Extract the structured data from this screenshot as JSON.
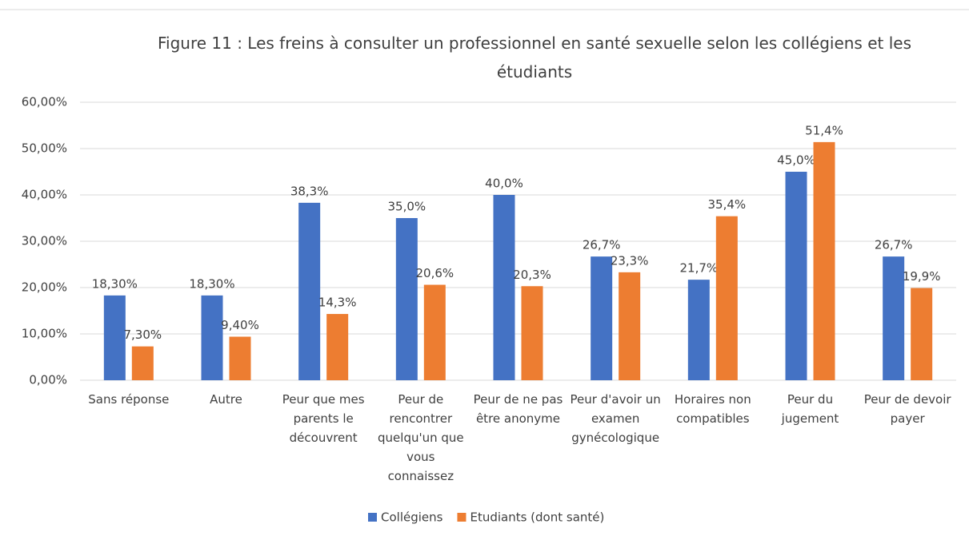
{
  "chart_data": {
    "type": "bar",
    "title": "Figure 11 : Les freins à consulter un professionnel en santé sexuelle selon les collégiens et les étudiants",
    "categories": [
      "Sans réponse",
      "Autre",
      "Peur que mes parents le découvrent",
      "Peur de rencontrer quelqu'un que vous connaissez",
      "Peur de ne pas être anonyme",
      "Peur d'avoir un examen gynécologique",
      "Horaires non compatibles",
      "Peur du jugement",
      "Peur de devoir payer"
    ],
    "series": [
      {
        "name": "Collégiens",
        "color": "#4472c4",
        "values": [
          18.3,
          18.3,
          38.3,
          35.0,
          40.0,
          26.7,
          21.7,
          45.0,
          26.7
        ],
        "value_labels": [
          "18,30%",
          "18,30%",
          "38,3%",
          "35,0%",
          "40,0%",
          "26,7%",
          "21,7%",
          "45,0%",
          "26,7%"
        ]
      },
      {
        "name": "Etudiants (dont santé)",
        "color": "#ed7d31",
        "values": [
          7.3,
          9.4,
          14.3,
          20.6,
          20.3,
          23.3,
          35.4,
          51.4,
          19.9
        ],
        "value_labels": [
          "7,30%",
          "9,40%",
          "14,3%",
          "20,6%",
          "20,3%",
          "23,3%",
          "35,4%",
          "51,4%",
          "19,9%"
        ]
      }
    ],
    "ylim": [
      0,
      60
    ],
    "yticks": [
      {
        "value": 0,
        "label": "0,00%"
      },
      {
        "value": 10,
        "label": "10,00%"
      },
      {
        "value": 20,
        "label": "20,00%"
      },
      {
        "value": 30,
        "label": "30,00%"
      },
      {
        "value": 40,
        "label": "40,00%"
      },
      {
        "value": 50,
        "label": "50,00%"
      },
      {
        "value": 60,
        "label": "60,00%"
      }
    ],
    "grid": true,
    "legend": "bottom"
  }
}
